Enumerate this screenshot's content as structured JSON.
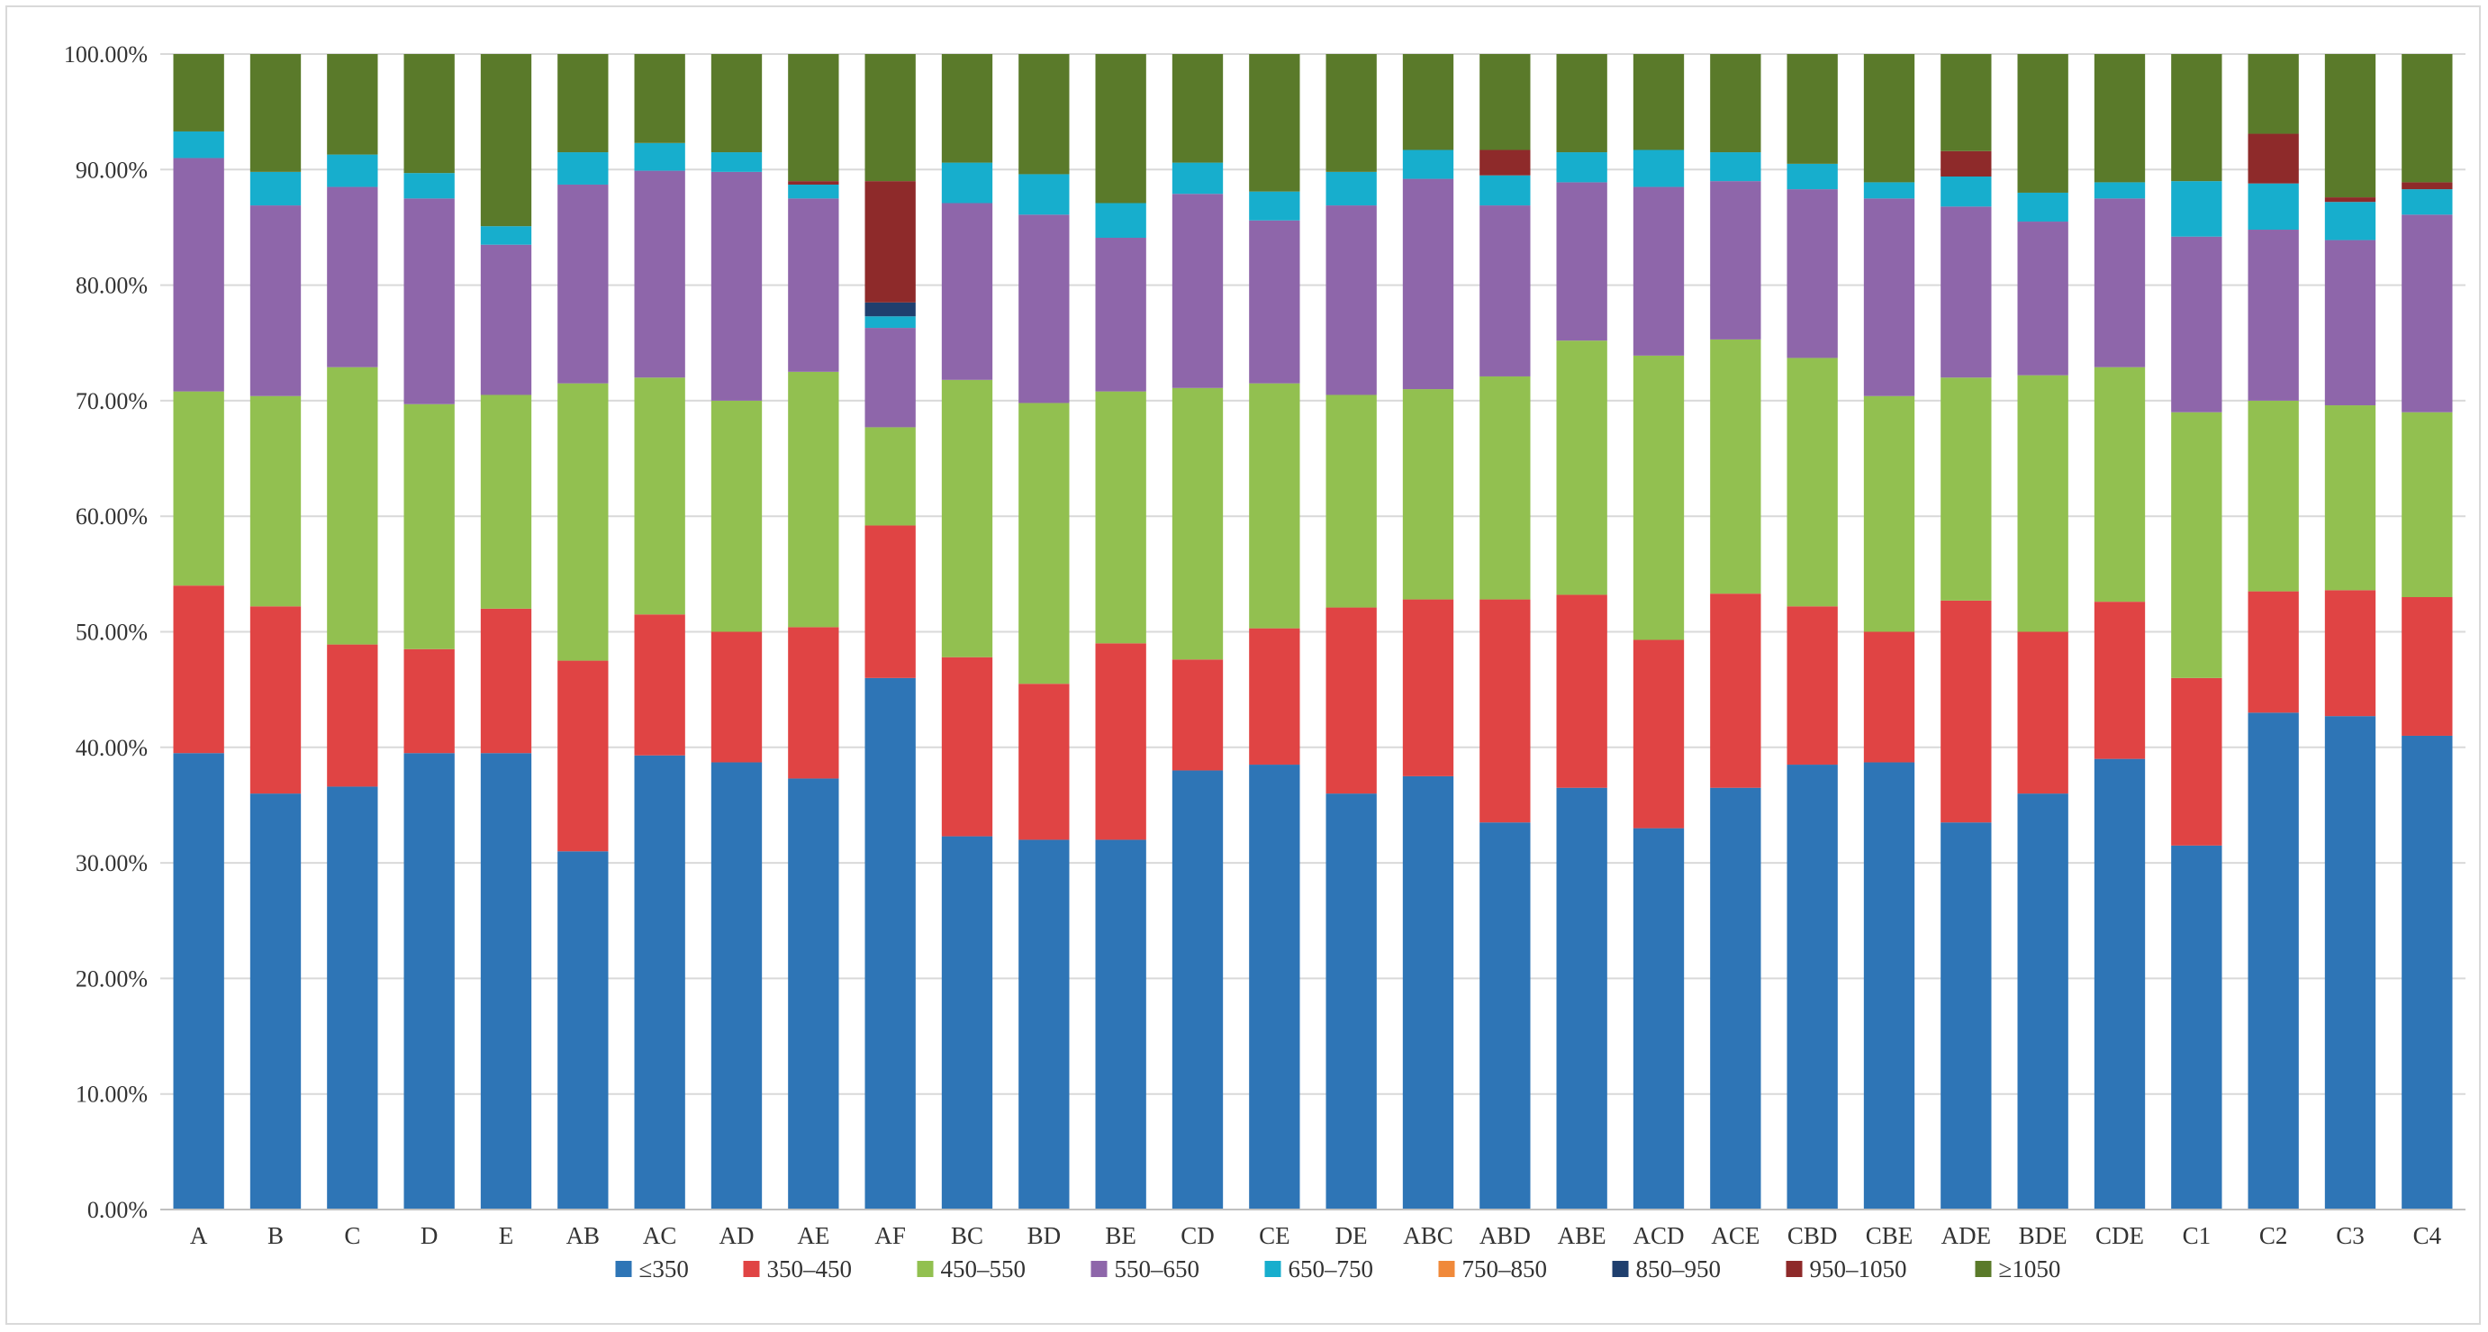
{
  "chart_data": {
    "type": "bar",
    "stacked": true,
    "title": "",
    "xlabel": "",
    "ylabel": "",
    "ylim": [
      0,
      100
    ],
    "y_ticks": [
      "0.00%",
      "10.00%",
      "20.00%",
      "30.00%",
      "40.00%",
      "50.00%",
      "60.00%",
      "70.00%",
      "80.00%",
      "90.00%",
      "100.00%"
    ],
    "grid": true,
    "legend_position": "bottom",
    "categories": [
      "A",
      "B",
      "C",
      "D",
      "E",
      "AB",
      "AC",
      "AD",
      "AE",
      "AF",
      "BC",
      "BD",
      "BE",
      "CD",
      "CE",
      "DE",
      "ABC",
      "ABD",
      "ABE",
      "ACD",
      "ACE",
      "CBD",
      "CBE",
      "ADE",
      "BDE",
      "CDE",
      "C1",
      "C2",
      "C3",
      "C4"
    ],
    "series": [
      {
        "name": "≤350",
        "color": "#2E75B6",
        "values": [
          39.5,
          36.0,
          36.6,
          39.5,
          39.5,
          31.0,
          39.3,
          38.7,
          37.3,
          46.0,
          32.3,
          32.0,
          32.0,
          38.0,
          38.5,
          36.0,
          37.5,
          33.5,
          36.5,
          33.0,
          36.5,
          38.5,
          38.7,
          33.5,
          36.0,
          39.0,
          31.5,
          43.0,
          42.7,
          41.0
        ]
      },
      {
        "name": "350–450",
        "color": "#E04444",
        "values": [
          14.5,
          16.2,
          12.3,
          9.0,
          12.5,
          16.5,
          12.2,
          11.3,
          13.1,
          13.2,
          15.5,
          13.5,
          17.0,
          9.6,
          11.8,
          16.1,
          15.3,
          19.3,
          16.7,
          16.3,
          16.8,
          13.7,
          11.3,
          19.2,
          14.0,
          13.6,
          14.5,
          10.5,
          10.9,
          12.0
        ]
      },
      {
        "name": "450–550",
        "color": "#92C050",
        "values": [
          16.8,
          18.2,
          24.0,
          21.2,
          18.5,
          24.0,
          20.5,
          20.0,
          22.1,
          8.5,
          24.0,
          24.3,
          21.8,
          23.5,
          21.2,
          18.4,
          18.2,
          19.3,
          22.0,
          24.6,
          22.0,
          21.5,
          20.4,
          19.3,
          22.2,
          20.3,
          23.0,
          16.5,
          16.0,
          16.0
        ]
      },
      {
        "name": "550–650",
        "color": "#8E66AA",
        "values": [
          20.2,
          16.5,
          15.6,
          17.8,
          13.0,
          17.2,
          17.9,
          19.8,
          15.0,
          8.6,
          15.3,
          16.3,
          13.3,
          16.8,
          14.1,
          16.4,
          18.2,
          14.8,
          13.7,
          14.6,
          13.7,
          14.6,
          17.1,
          14.8,
          13.3,
          14.6,
          15.2,
          14.8,
          14.3,
          17.1
        ]
      },
      {
        "name": "650–750",
        "color": "#17AECD",
        "values": [
          2.3,
          2.9,
          2.8,
          2.2,
          1.6,
          2.8,
          2.4,
          1.7,
          1.2,
          1.0,
          3.5,
          3.5,
          3.0,
          2.7,
          2.5,
          2.9,
          2.5,
          2.6,
          2.6,
          3.2,
          2.5,
          2.2,
          1.4,
          2.6,
          2.5,
          1.4,
          4.8,
          4.0,
          3.3,
          2.2
        ]
      },
      {
        "name": "750–850",
        "color": "#F0893A",
        "values": [
          0,
          0,
          0,
          0,
          0,
          0,
          0,
          0,
          0,
          0,
          0,
          0,
          0,
          0,
          0,
          0,
          0,
          0,
          0,
          0,
          0,
          0,
          0,
          0,
          0,
          0,
          0,
          0,
          0,
          0
        ]
      },
      {
        "name": "850–950",
        "color": "#1F3F6E",
        "values": [
          0,
          0,
          0,
          0,
          0,
          0,
          0,
          0,
          0,
          1.2,
          0,
          0,
          0,
          0,
          0,
          0,
          0,
          0,
          0,
          0,
          0,
          0,
          0,
          0,
          0,
          0,
          0,
          0,
          0,
          0
        ]
      },
      {
        "name": "950–1050",
        "color": "#8E2A2A",
        "values": [
          0,
          0,
          0,
          0,
          0,
          0,
          0,
          0,
          0.3,
          10.5,
          0,
          0,
          0,
          0,
          0,
          0,
          0,
          2.2,
          0,
          0,
          0,
          0,
          0,
          2.2,
          0,
          0,
          0,
          4.3,
          0.4,
          0.6
        ]
      },
      {
        "name": "≥1050",
        "color": "#5A7A2A",
        "values": [
          6.7,
          10.2,
          8.7,
          10.3,
          14.9,
          8.5,
          7.7,
          8.5,
          11.0,
          11.0,
          9.4,
          10.4,
          12.9,
          9.4,
          11.9,
          10.2,
          8.3,
          8.3,
          8.5,
          8.3,
          8.5,
          9.5,
          11.1,
          8.4,
          12.0,
          11.1,
          11.0,
          6.9,
          12.4,
          11.1
        ]
      }
    ]
  }
}
